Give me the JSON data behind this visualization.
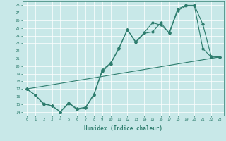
{
  "xlabel": "Humidex (Indice chaleur)",
  "bg_color": "#c8e8e8",
  "grid_color": "#ffffff",
  "line_color": "#2e7d6e",
  "xlim": [
    -0.5,
    23.5
  ],
  "ylim": [
    13.5,
    28.5
  ],
  "xticks": [
    0,
    1,
    2,
    3,
    4,
    5,
    6,
    7,
    8,
    9,
    10,
    11,
    12,
    13,
    14,
    15,
    16,
    17,
    18,
    19,
    20,
    21,
    22,
    23
  ],
  "yticks": [
    14,
    15,
    16,
    17,
    18,
    19,
    20,
    21,
    22,
    23,
    24,
    25,
    26,
    27,
    28
  ],
  "line1_x": [
    0,
    1,
    2,
    3,
    4,
    5,
    6,
    7,
    8,
    9,
    10,
    11,
    12,
    13,
    14,
    15,
    16,
    17,
    18,
    19,
    20,
    21,
    22,
    23
  ],
  "line1_y": [
    17.0,
    16.2,
    15.0,
    14.8,
    14.0,
    15.1,
    14.3,
    14.5,
    16.2,
    19.3,
    20.3,
    22.3,
    24.8,
    23.1,
    24.3,
    24.5,
    25.7,
    24.3,
    27.3,
    27.9,
    27.9,
    22.3,
    21.2,
    21.2
  ],
  "line2_x": [
    0,
    1,
    2,
    3,
    4,
    5,
    6,
    7,
    8,
    9,
    10,
    11,
    12,
    13,
    14,
    15,
    16,
    17,
    18,
    19,
    20,
    21,
    22,
    23
  ],
  "line2_y": [
    17.0,
    16.2,
    15.1,
    14.8,
    14.0,
    15.2,
    14.4,
    14.6,
    16.3,
    19.5,
    20.4,
    22.4,
    24.8,
    23.2,
    24.4,
    25.7,
    25.4,
    24.4,
    27.5,
    28.0,
    28.0,
    25.5,
    21.3,
    21.2
  ],
  "line3_x": [
    0,
    23
  ],
  "line3_y": [
    17.0,
    21.2
  ]
}
